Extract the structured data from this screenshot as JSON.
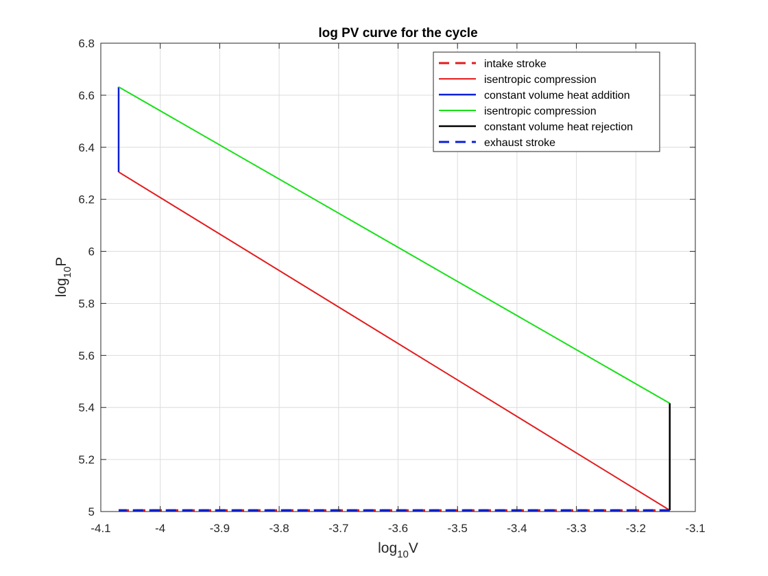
{
  "chart_data": {
    "type": "line",
    "title": "log PV curve for the cycle",
    "xlabel": {
      "pre": "log",
      "sub": "10",
      "post": "V"
    },
    "ylabel": {
      "pre": "log",
      "sub": "10",
      "post": "P"
    },
    "xlim": [
      -4.1,
      -3.1
    ],
    "ylim": [
      5,
      6.8
    ],
    "xticks": [
      -4.1,
      -4,
      -3.9,
      -3.8,
      -3.7,
      -3.6,
      -3.5,
      -3.4,
      -3.3,
      -3.2,
      -3.1
    ],
    "xtick_labels": [
      "-4.1",
      "-4",
      "-3.9",
      "-3.8",
      "-3.7",
      "-3.6",
      "-3.5",
      "-3.4",
      "-3.3",
      "-3.2",
      "-3.1"
    ],
    "yticks": [
      5,
      5.2,
      5.4,
      5.6,
      5.8,
      6,
      6.2,
      6.4,
      6.6,
      6.8
    ],
    "ytick_labels": [
      "5",
      "5.2",
      "5.4",
      "5.6",
      "5.8",
      "6",
      "6.2",
      "6.4",
      "6.6",
      "6.8"
    ],
    "grid": true,
    "legend_position": "top-right",
    "series": [
      {
        "name": "intake stroke",
        "color": "#e31a1c",
        "dash": true,
        "width": 3,
        "x": [
          -4.07,
          -3.143
        ],
        "y": [
          5.005,
          5.005
        ]
      },
      {
        "name": "isentropic compression",
        "color": "#e31a1c",
        "dash": false,
        "width": 2,
        "x": [
          -3.143,
          -4.07
        ],
        "y": [
          5.005,
          6.305
        ]
      },
      {
        "name": "constant volume heat addition",
        "color": "#0a1fd6",
        "dash": false,
        "width": 2.5,
        "x": [
          -4.07,
          -4.07
        ],
        "y": [
          6.305,
          6.632
        ]
      },
      {
        "name": "isentropic compression",
        "color": "#16e016",
        "dash": false,
        "width": 2,
        "x": [
          -4.07,
          -3.143
        ],
        "y": [
          6.632,
          5.416
        ]
      },
      {
        "name": "constant volume heat rejection",
        "color": "#000000",
        "dash": false,
        "width": 2.5,
        "x": [
          -3.143,
          -3.143
        ],
        "y": [
          5.416,
          5.005
        ]
      },
      {
        "name": "exhaust stroke",
        "color": "#0a1fd6",
        "dash": true,
        "width": 3,
        "x": [
          -3.143,
          -4.07
        ],
        "y": [
          5.005,
          5.005
        ]
      }
    ]
  }
}
